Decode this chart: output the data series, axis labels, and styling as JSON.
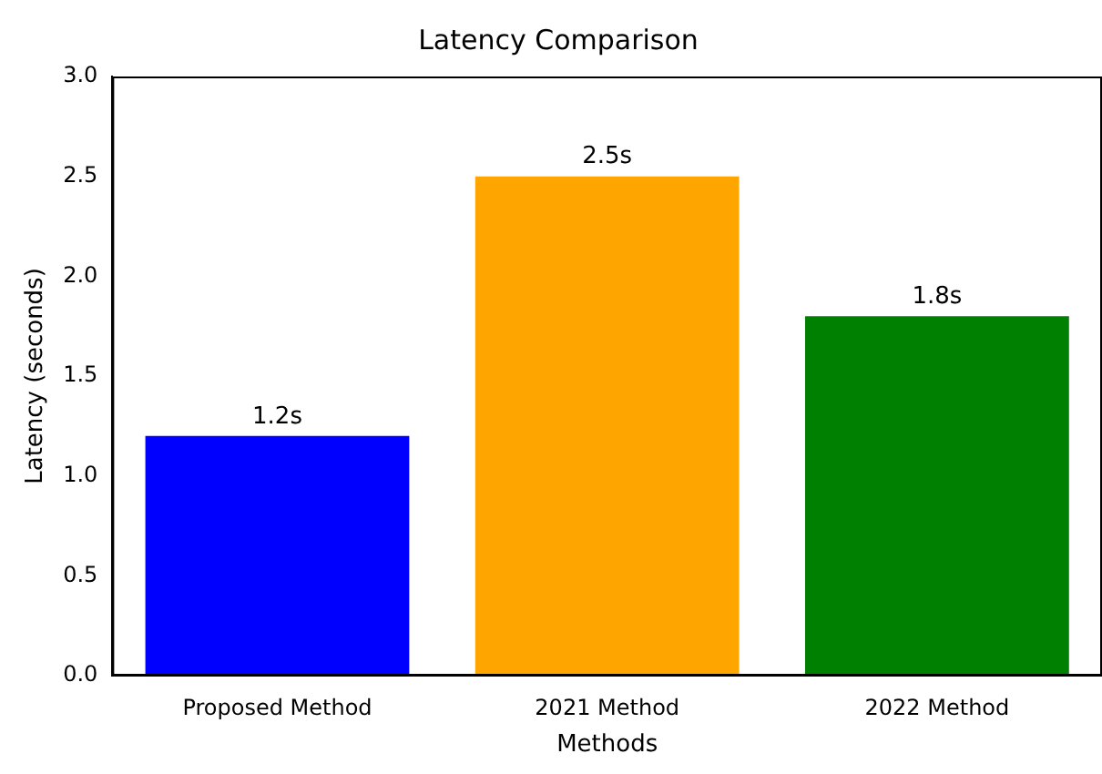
{
  "chart_data": {
    "type": "bar",
    "title": "Latency Comparison",
    "xlabel": "Methods",
    "ylabel": "Latency (seconds)",
    "categories": [
      "Proposed Method",
      "2021 Method",
      "2022 Method"
    ],
    "values": [
      1.2,
      2.5,
      1.8
    ],
    "colors": [
      "#0000ff",
      "#ffa500",
      "#008000"
    ],
    "value_labels": [
      "1.2s",
      "2.5s",
      "1.8s"
    ],
    "ylim": [
      0,
      3
    ],
    "yticks": [
      {
        "value": 0,
        "label": "0.0"
      },
      {
        "value": 0.5,
        "label": "0.5"
      },
      {
        "value": 1,
        "label": "1.0"
      },
      {
        "value": 1.5,
        "label": "1.5"
      },
      {
        "value": 2,
        "label": "2.0"
      },
      {
        "value": 2.5,
        "label": "2.5"
      },
      {
        "value": 3,
        "label": "3.0"
      }
    ],
    "grid": false,
    "legend": false
  }
}
